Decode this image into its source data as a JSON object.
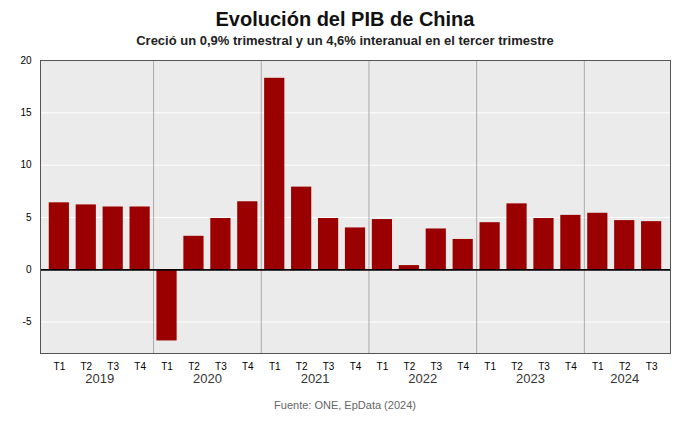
{
  "chart_data": {
    "type": "bar",
    "title": "Evolución del PIB de China",
    "subtitle": "Creció un 0,9% trimestral y un 4,6% interanual en el tercer trimestre",
    "source": "Fuente: ONE, EpData (2024)",
    "categories": [
      "T1",
      "T2",
      "T3",
      "T4",
      "T1",
      "T2",
      "T3",
      "T4",
      "T1",
      "T2",
      "T3",
      "T4",
      "T1",
      "T2",
      "T3",
      "T4",
      "T1",
      "T2",
      "T3",
      "T4",
      "T1",
      "T2",
      "T3"
    ],
    "values": [
      6.4,
      6.2,
      6.0,
      6.0,
      -6.8,
      3.2,
      4.9,
      6.5,
      18.3,
      7.9,
      4.9,
      4.0,
      4.8,
      0.4,
      3.9,
      2.9,
      4.5,
      6.3,
      4.9,
      5.2,
      5.4,
      4.7,
      4.6
    ],
    "group_labels": [
      "2019",
      "2020",
      "2021",
      "2022",
      "2023",
      "2024"
    ],
    "color": "#9B0000",
    "ylim": [
      -8,
      20
    ],
    "yticks": [
      -5,
      0,
      5,
      10,
      15,
      20
    ],
    "grid": true
  }
}
